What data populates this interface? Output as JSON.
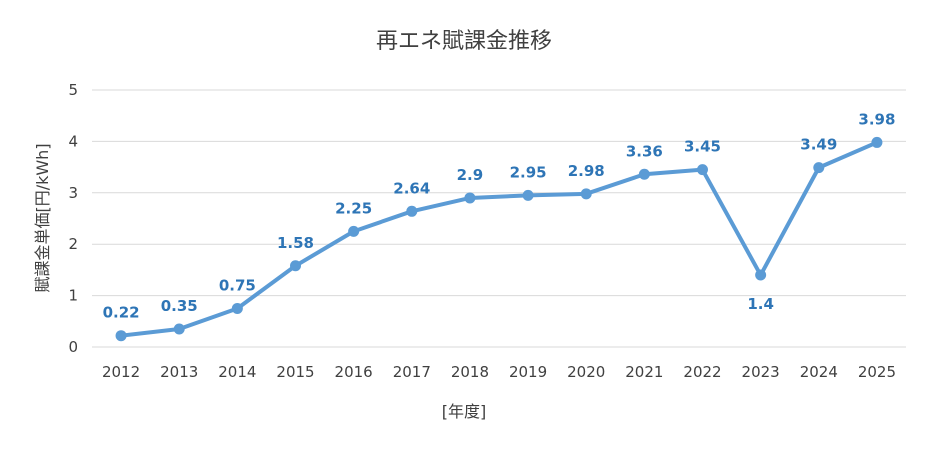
{
  "chart_data": {
    "type": "line",
    "title": "再エネ賦課金推移",
    "xlabel": "[年度]",
    "ylabel": "賦課金単価[円/kWh]",
    "categories": [
      "2012",
      "2013",
      "2014",
      "2015",
      "2016",
      "2017",
      "2018",
      "2019",
      "2020",
      "2021",
      "2022",
      "2023",
      "2024",
      "2025"
    ],
    "series": [
      {
        "values": [
          0.22,
          0.35,
          0.75,
          1.58,
          2.25,
          2.64,
          2.9,
          2.95,
          2.98,
          3.36,
          3.45,
          1.4,
          3.49,
          3.98
        ],
        "labels": [
          "0.22",
          "0.35",
          "0.75",
          "1.58",
          "2.25",
          "2.64",
          "2.9",
          "2.95",
          "2.98",
          "3.36",
          "3.45",
          "1.4",
          "3.49",
          "3.98"
        ]
      }
    ],
    "yticks": [
      "0",
      "1",
      "2",
      "3",
      "4",
      "5"
    ],
    "ylim": [
      0,
      5
    ],
    "grid": true,
    "colors": {
      "line": "#5b9bd5",
      "label": "#2e75b6",
      "grid": "#d9d9d9",
      "text": "#404040"
    }
  }
}
